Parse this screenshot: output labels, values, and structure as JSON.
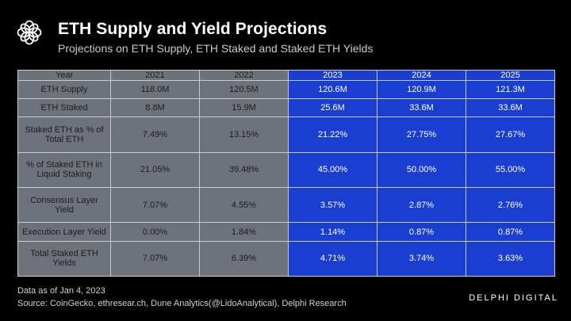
{
  "header": {
    "title": "ETH Supply and Yield Projections",
    "subtitle": "Projections on ETH Supply, ETH Staked and Staked ETH Yields",
    "logo_icon": "flower-ring-logo-icon"
  },
  "table": {
    "header_label": "Year",
    "years": [
      "2021",
      "2022",
      "2023",
      "2024",
      "2025"
    ],
    "rows": [
      {
        "label": "ETH Supply",
        "values": [
          "118.0M",
          "120.5M",
          "120.6M",
          "120.9M",
          "121.3M"
        ]
      },
      {
        "label": "ETH Staked",
        "values": [
          "8.8M",
          "15.9M",
          "25.6M",
          "33.6M",
          "33.6M"
        ]
      },
      {
        "label": "Staked ETH as % of Total ETH",
        "values": [
          "7.49%",
          "13.15%",
          "21.22%",
          "27.75%",
          "27.67%"
        ]
      },
      {
        "label": "% of Staked ETH in Liquid Staking",
        "values": [
          "21.05%",
          "39.48%",
          "45.00%",
          "50.00%",
          "55.00%"
        ]
      },
      {
        "label": "Consensus Layer Yield",
        "values": [
          "7.07%",
          "4.55%",
          "3.57%",
          "2.87%",
          "2.76%"
        ]
      },
      {
        "label": "Execution Layer Yield",
        "values": [
          "0.00%",
          "1.84%",
          "1.14%",
          "0.87%",
          "0.87%"
        ]
      },
      {
        "label": "Total Staked ETH Yields",
        "values": [
          "7.07%",
          "6.39%",
          "4.71%",
          "3.74%",
          "3.63%"
        ]
      }
    ],
    "colors": {
      "historical": "#6e727a",
      "projected": "#1a3fd0",
      "border": "#c9ccd0"
    }
  },
  "footer": {
    "date_note": "Data as of Jan 4, 2023",
    "source": "Source: CoinGecko, ethresear.ch, Dune Analytics(@LidoAnalytical), Delphi Research",
    "brand": "DELPHI DIGITAL",
    "brand_icon": "delphi-digital-logo-icon"
  }
}
